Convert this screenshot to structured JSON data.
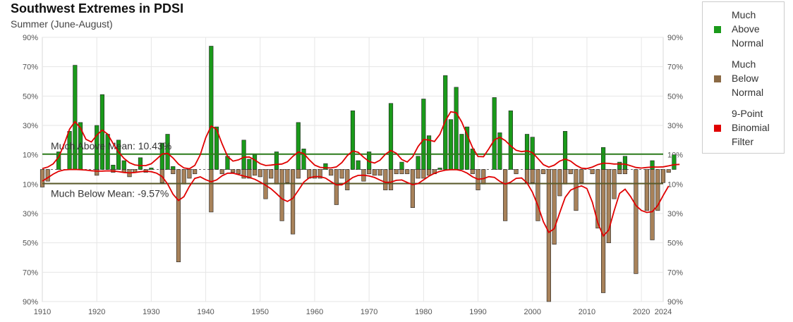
{
  "chart_data": {
    "type": "bar",
    "title": "Southwest Extremes in PDSI",
    "subtitle": "Summer (June-August)",
    "xlim": [
      1910,
      2024
    ],
    "x_ticks": [
      1910,
      1920,
      1930,
      1940,
      1950,
      1960,
      1970,
      1980,
      1990,
      2000,
      2010,
      2020,
      2024
    ],
    "y_ticks": [
      "90%",
      "70%",
      "50%",
      "30%",
      "10%",
      "10%",
      "30%",
      "50%",
      "70%",
      "90%"
    ],
    "above_mean_label": "Much Above Mean: 10.43%",
    "below_mean_label": "Much Below Mean: -9.57%",
    "above_mean": 10.43,
    "below_mean": -9.57,
    "colors": {
      "above": "#1a9a1a",
      "below": "#a8825a",
      "filter": "#e00000",
      "above_mean_line": "#2e7d1e",
      "below_mean_line": "#5a5a2a"
    },
    "legend": [
      {
        "label": "Much Above Normal",
        "lines": [
          "Much",
          "Above",
          "Normal"
        ],
        "color": "#1a9a1a"
      },
      {
        "label": "Much Below Normal",
        "lines": [
          "Much",
          "Below",
          "Normal"
        ],
        "color": "#8b6a45"
      },
      {
        "label": "9-Point Binomial Filter",
        "lines": [
          "9-Point",
          "Binomial",
          "Filter"
        ],
        "color": "#e00000"
      }
    ],
    "series": [
      {
        "name": "Much Above Normal",
        "values": [
          0,
          0,
          0,
          12,
          0,
          26,
          71,
          32,
          0,
          0,
          30,
          51,
          24,
          3,
          20,
          6,
          0,
          0,
          8,
          0,
          1,
          0,
          18,
          24,
          2,
          0,
          0,
          0,
          0,
          0,
          0,
          84,
          29,
          0,
          9,
          0,
          0,
          20,
          7,
          10,
          0,
          0,
          0,
          12,
          0,
          0,
          0,
          32,
          14,
          0,
          0,
          0,
          4,
          0,
          0,
          0,
          0,
          40,
          6,
          0,
          12,
          0,
          0,
          0,
          45,
          0,
          5,
          0,
          0,
          9,
          48,
          23,
          0,
          1,
          64,
          34,
          56,
          24,
          29,
          14,
          0,
          0,
          0,
          49,
          25,
          0,
          40,
          0,
          0,
          24,
          22,
          0,
          0,
          0,
          0,
          0,
          26,
          0,
          0,
          0,
          0,
          0,
          0,
          15,
          0,
          0,
          5,
          9,
          0,
          0,
          0,
          0,
          6,
          0,
          0,
          0,
          10,
          0
        ]
      },
      {
        "name": "Much Below Normal",
        "values": [
          -12,
          -8,
          0,
          0,
          0,
          0,
          0,
          0,
          0,
          0,
          -4,
          0,
          0,
          -2,
          0,
          -2,
          -5,
          -2,
          0,
          -2,
          0,
          0,
          -9,
          0,
          -3,
          -63,
          -10,
          -6,
          -3,
          0,
          0,
          -29,
          0,
          -3,
          0,
          -2,
          -3,
          -6,
          -6,
          -4,
          -5,
          -20,
          -6,
          -10,
          -35,
          -9,
          -44,
          -6,
          0,
          -6,
          -6,
          -6,
          0,
          -4,
          -24,
          -6,
          -14,
          0,
          0,
          -8,
          -3,
          -4,
          -4,
          -14,
          -14,
          -3,
          -3,
          -3,
          -26,
          -6,
          -6,
          -4,
          -3,
          0,
          0,
          0,
          0,
          0,
          0,
          -3,
          -14,
          -10,
          0,
          0,
          0,
          -35,
          0,
          -3,
          0,
          -9,
          -9,
          -35,
          -3,
          -90,
          -51,
          -18,
          -10,
          -3,
          -28,
          -9,
          0,
          -3,
          -40,
          -84,
          -50,
          -20,
          -3,
          -3,
          0,
          -71,
          0,
          -28,
          -48,
          -28,
          -9,
          -2
        ]
      },
      {
        "name": "9-Point Binomial Filter",
        "values": [
          -10,
          -8,
          -5,
          6,
          17,
          26,
          32,
          28,
          20,
          16,
          22,
          26,
          20,
          14,
          9,
          5,
          3,
          3,
          2,
          2,
          2,
          2,
          5,
          10,
          4,
          -8,
          -18,
          -14,
          -8,
          -4,
          3,
          15,
          29,
          26,
          12,
          7,
          3,
          5,
          8,
          10,
          4,
          -5,
          -12,
          -17,
          -22,
          -20,
          -15,
          -8,
          -5,
          -3,
          -2,
          -3,
          -5,
          -8,
          -10,
          -6,
          2,
          12,
          6,
          2,
          3,
          5,
          7,
          6,
          13,
          6,
          1,
          -3,
          -7,
          3,
          16,
          20,
          16,
          21,
          34,
          39,
          35,
          25,
          16,
          9,
          7,
          10,
          20,
          23,
          16,
          13,
          10,
          9,
          7,
          9,
          5,
          -4,
          -10,
          -30,
          -42,
          -37,
          -22,
          -10,
          1,
          6,
          2,
          1,
          2,
          -12,
          -44,
          -40,
          -24,
          -10,
          -2,
          -14,
          -24,
          -28,
          -27,
          -20,
          -10,
          -6
        ]
      }
    ]
  }
}
